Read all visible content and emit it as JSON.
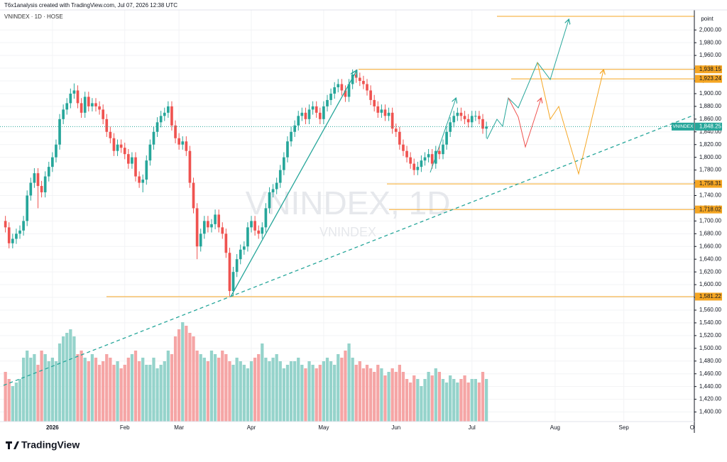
{
  "header": {
    "credit": "T6x1analysis created with TradingView.com, Jul 07, 2026 12:38 UTC",
    "brand": "TradingView"
  },
  "chart_data": {
    "type": "candlestick",
    "title": "VNINDEX · 1D · HOSE",
    "watermark": "VNINDEX, 1D",
    "watermark_sub": "VNINDEX",
    "y_unit": "point",
    "up_color": "#26a69a",
    "down_color": "#ef5350",
    "volume_up_color": "#95d3cb",
    "volume_down_color": "#f5a5a5",
    "grid": true,
    "xlim": [
      -1.5,
      190.5
    ],
    "ylim": [
      1385,
      2027
    ],
    "volume_ylim": [
      0,
      300
    ],
    "xticks": [
      {
        "value": 13,
        "label": "2026"
      },
      {
        "value": 33,
        "label": "Feb"
      },
      {
        "value": 48,
        "label": "Mar"
      },
      {
        "value": 68,
        "label": "Apr"
      },
      {
        "value": 88,
        "label": "May"
      },
      {
        "value": 108,
        "label": "Jun"
      },
      {
        "value": 129,
        "label": "Jul"
      },
      {
        "value": 152,
        "label": "Aug"
      },
      {
        "value": 171,
        "label": "Sep"
      },
      {
        "value": 190.5,
        "label": "Oct"
      }
    ],
    "yticks": [
      {
        "value": 1400,
        "label": "1,400.00"
      },
      {
        "value": 1420,
        "label": "1,420.00"
      },
      {
        "value": 1440,
        "label": "1,440.00"
      },
      {
        "value": 1460,
        "label": "1,460.00"
      },
      {
        "value": 1480,
        "label": "1,480.00"
      },
      {
        "value": 1500,
        "label": "1,500.00"
      },
      {
        "value": 1520,
        "label": "1,520.00"
      },
      {
        "value": 1540,
        "label": "1,540.00"
      },
      {
        "value": 1560,
        "label": "1,560.00"
      },
      {
        "value": 1580,
        "label": "1,580.00"
      },
      {
        "value": 1600,
        "label": "1,600.00"
      },
      {
        "value": 1620,
        "label": "1,620.00"
      },
      {
        "value": 1640,
        "label": "1,640.00"
      },
      {
        "value": 1660,
        "label": "1,660.00"
      },
      {
        "value": 1680,
        "label": "1,680.00"
      },
      {
        "value": 1700,
        "label": "1,700.00"
      },
      {
        "value": 1720,
        "label": "1,720.00"
      },
      {
        "value": 1740,
        "label": "1,740.00"
      },
      {
        "value": 1760,
        "label": "1,760.00"
      },
      {
        "value": 1780,
        "label": "1,780.00"
      },
      {
        "value": 1800,
        "label": "1,800.00"
      },
      {
        "value": 1820,
        "label": "1,820.00"
      },
      {
        "value": 1840,
        "label": "1,840.00"
      },
      {
        "value": 1860,
        "label": "1,860.00"
      },
      {
        "value": 1880,
        "label": "1,880.00"
      },
      {
        "value": 1900,
        "label": "1,900.00"
      },
      {
        "value": 1920,
        "label": "1,920.00"
      },
      {
        "value": 1940,
        "label": "1,940.00"
      },
      {
        "value": 1960,
        "label": "1,960.00"
      },
      {
        "value": 1980,
        "label": "1,980.00"
      },
      {
        "value": 2000,
        "label": "2,000.00"
      }
    ],
    "levels": [
      {
        "value": 1938.15,
        "label": "1,938.15"
      },
      {
        "value": 1923.24,
        "label": "1,923.24"
      },
      {
        "value": 1758.31,
        "label": "1,758.31"
      },
      {
        "value": 1718.02,
        "label": "1,718.02"
      },
      {
        "value": 1581.22,
        "label": "1,581.22"
      }
    ],
    "level_color": "#f5a623",
    "last_price": {
      "name": "VNINDEX",
      "value": 1848.25,
      "label": "1,848.25",
      "color": "#26a69a"
    },
    "open": [
      1700,
      1690,
      1665,
      1672,
      1680,
      1685,
      1700,
      1740,
      1760,
      1775,
      1755,
      1745,
      1770,
      1785,
      1800,
      1820,
      1860,
      1875,
      1885,
      1900,
      1905,
      1885,
      1870,
      1895,
      1880,
      1885,
      1880,
      1875,
      1860,
      1840,
      1830,
      1810,
      1820,
      1815,
      1805,
      1790,
      1800,
      1770,
      1760,
      1765,
      1795,
      1820,
      1840,
      1855,
      1865,
      1870,
      1880,
      1850,
      1830,
      1820,
      1825,
      1810,
      1760,
      1720,
      1660,
      1680,
      1700,
      1690,
      1695,
      1710,
      1690,
      1680,
      1650,
      1590,
      1620,
      1640,
      1655,
      1660,
      1690,
      1700,
      1685,
      1680,
      1690,
      1720,
      1745,
      1750,
      1760,
      1780,
      1800,
      1825,
      1840,
      1850,
      1865,
      1870,
      1860,
      1875,
      1880,
      1870,
      1860,
      1880,
      1890,
      1900,
      1910,
      1915,
      1905,
      1895,
      1915,
      1930,
      1925,
      1920,
      1915,
      1905,
      1890,
      1880,
      1870,
      1875,
      1865,
      1870,
      1845,
      1840,
      1820,
      1810,
      1800,
      1790,
      1780,
      1785,
      1795,
      1800,
      1805,
      1790,
      1810,
      1805,
      1820,
      1840,
      1855,
      1865,
      1870,
      1865,
      1860,
      1855,
      1865,
      1865,
      1860,
      1845
    ],
    "high": [
      1708,
      1698,
      1680,
      1688,
      1693,
      1708,
      1748,
      1768,
      1783,
      1783,
      1763,
      1778,
      1793,
      1808,
      1828,
      1868,
      1883,
      1893,
      1908,
      1916,
      1913,
      1893,
      1903,
      1903,
      1893,
      1893,
      1888,
      1883,
      1868,
      1848,
      1838,
      1828,
      1828,
      1823,
      1813,
      1808,
      1808,
      1778,
      1773,
      1803,
      1828,
      1848,
      1863,
      1873,
      1878,
      1888,
      1888,
      1858,
      1838,
      1833,
      1833,
      1818,
      1768,
      1728,
      1688,
      1708,
      1708,
      1703,
      1718,
      1718,
      1698,
      1688,
      1658,
      1628,
      1648,
      1663,
      1668,
      1698,
      1708,
      1708,
      1693,
      1698,
      1728,
      1753,
      1758,
      1768,
      1788,
      1808,
      1833,
      1848,
      1858,
      1873,
      1878,
      1878,
      1883,
      1888,
      1888,
      1878,
      1888,
      1898,
      1908,
      1918,
      1923,
      1923,
      1913,
      1923,
      1938,
      1938,
      1933,
      1928,
      1923,
      1913,
      1898,
      1888,
      1883,
      1883,
      1878,
      1878,
      1853,
      1848,
      1828,
      1818,
      1808,
      1798,
      1793,
      1803,
      1808,
      1813,
      1813,
      1818,
      1818,
      1828,
      1848,
      1863,
      1873,
      1878,
      1878,
      1873,
      1868,
      1873,
      1873,
      1873,
      1868,
      1856
    ],
    "low": [
      1682,
      1657,
      1657,
      1664,
      1672,
      1677,
      1692,
      1732,
      1752,
      1720,
      1737,
      1737,
      1762,
      1777,
      1792,
      1812,
      1852,
      1867,
      1877,
      1892,
      1877,
      1862,
      1862,
      1872,
      1872,
      1872,
      1867,
      1852,
      1832,
      1822,
      1802,
      1802,
      1807,
      1797,
      1782,
      1782,
      1762,
      1752,
      1745,
      1757,
      1787,
      1812,
      1832,
      1847,
      1857,
      1862,
      1842,
      1822,
      1812,
      1812,
      1802,
      1752,
      1712,
      1640,
      1652,
      1672,
      1682,
      1682,
      1687,
      1682,
      1672,
      1642,
      1582,
      1582,
      1612,
      1632,
      1647,
      1652,
      1682,
      1677,
      1672,
      1672,
      1682,
      1712,
      1737,
      1742,
      1752,
      1772,
      1792,
      1817,
      1832,
      1842,
      1857,
      1852,
      1852,
      1867,
      1862,
      1852,
      1852,
      1872,
      1882,
      1892,
      1902,
      1897,
      1887,
      1887,
      1907,
      1917,
      1912,
      1907,
      1897,
      1882,
      1872,
      1862,
      1862,
      1857,
      1857,
      1837,
      1832,
      1812,
      1802,
      1792,
      1782,
      1772,
      1772,
      1777,
      1787,
      1792,
      1782,
      1782,
      1797,
      1797,
      1812,
      1832,
      1847,
      1857,
      1857,
      1852,
      1847,
      1847,
      1857,
      1852,
      1837,
      1830
    ],
    "close": [
      1690,
      1665,
      1672,
      1680,
      1685,
      1700,
      1740,
      1760,
      1775,
      1755,
      1745,
      1770,
      1785,
      1800,
      1820,
      1860,
      1875,
      1885,
      1900,
      1905,
      1885,
      1870,
      1895,
      1880,
      1885,
      1880,
      1875,
      1860,
      1840,
      1830,
      1810,
      1820,
      1815,
      1805,
      1790,
      1800,
      1770,
      1760,
      1765,
      1795,
      1820,
      1840,
      1855,
      1865,
      1870,
      1880,
      1850,
      1830,
      1820,
      1825,
      1810,
      1760,
      1720,
      1660,
      1680,
      1700,
      1690,
      1695,
      1710,
      1690,
      1680,
      1650,
      1590,
      1620,
      1640,
      1655,
      1660,
      1690,
      1700,
      1685,
      1680,
      1690,
      1720,
      1745,
      1750,
      1760,
      1780,
      1800,
      1825,
      1840,
      1850,
      1865,
      1870,
      1860,
      1875,
      1880,
      1870,
      1860,
      1880,
      1890,
      1900,
      1910,
      1915,
      1905,
      1895,
      1915,
      1930,
      1925,
      1920,
      1915,
      1905,
      1890,
      1880,
      1870,
      1875,
      1865,
      1870,
      1845,
      1840,
      1820,
      1810,
      1800,
      1790,
      1780,
      1785,
      1795,
      1800,
      1805,
      1790,
      1810,
      1805,
      1820,
      1840,
      1855,
      1865,
      1870,
      1865,
      1860,
      1855,
      1865,
      1865,
      1860,
      1845,
      1848.25
    ],
    "volume": [
      70,
      60,
      50,
      55,
      60,
      90,
      100,
      90,
      95,
      80,
      100,
      95,
      85,
      90,
      85,
      110,
      120,
      125,
      130,
      120,
      95,
      100,
      90,
      85,
      95,
      90,
      80,
      85,
      95,
      90,
      80,
      85,
      75,
      80,
      90,
      95,
      100,
      85,
      90,
      80,
      80,
      90,
      75,
      80,
      85,
      100,
      95,
      120,
      130,
      140,
      135,
      125,
      120,
      100,
      95,
      90,
      85,
      100,
      95,
      90,
      100,
      95,
      85,
      80,
      90,
      85,
      80,
      75,
      85,
      90,
      95,
      110,
      90,
      85,
      90,
      95,
      85,
      75,
      80,
      85,
      85,
      90,
      80,
      75,
      85,
      80,
      75,
      80,
      85,
      90,
      85,
      80,
      95,
      90,
      100,
      110,
      90,
      80,
      85,
      75,
      80,
      75,
      70,
      80,
      75,
      65,
      70,
      75,
      70,
      80,
      70,
      60,
      55,
      65,
      60,
      50,
      60,
      70,
      65,
      75,
      70,
      60,
      55,
      65,
      60,
      55,
      60,
      65,
      55,
      60,
      60,
      55,
      70,
      60
    ]
  }
}
